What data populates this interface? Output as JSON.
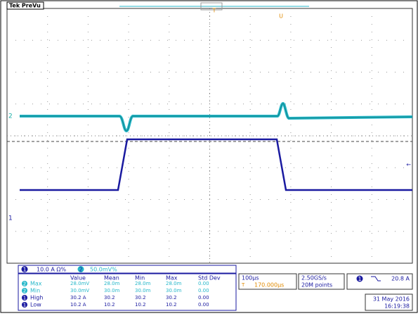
{
  "header": {
    "title": "Tek PreVu",
    "trigger_marker": "T",
    "cursor_marker": "U"
  },
  "markers": {
    "ch2": "2",
    "ch1": "1",
    "trigger_level": "←"
  },
  "channel_bar": {
    "ch1": {
      "badge": "1",
      "scale": "10.0 A Ω%"
    },
    "ch2": {
      "badge": "2",
      "scale": "50.0mV%"
    }
  },
  "measurements": {
    "headers": [
      "Value",
      "Mean",
      "Min",
      "Max",
      "Std Dev"
    ],
    "rows": [
      {
        "channel": "2",
        "label": "Max",
        "cells": [
          "28.0mV",
          "28.0m",
          "28.0m",
          "28.0m",
          "0.00"
        ]
      },
      {
        "channel": "2",
        "label": "Min",
        "cells": [
          "30.0mV",
          "30.0m",
          "30.0m",
          "30.0m",
          "0.00"
        ]
      },
      {
        "channel": "1",
        "label": "High",
        "cells": [
          "30.2 A",
          "30.2",
          "30.2",
          "30.2",
          "0.00"
        ]
      },
      {
        "channel": "1",
        "label": "Low",
        "cells": [
          "10.2 A",
          "10.2",
          "10.2",
          "10.2",
          "0.00"
        ]
      }
    ]
  },
  "timebase": {
    "scale": "100µs",
    "position": "170.000µs"
  },
  "acquisition": {
    "rate": "2.50GS/s",
    "length": "20M points"
  },
  "trigger": {
    "source": "1",
    "level": "20.8 A"
  },
  "datetime": {
    "date": "31 May 2016",
    "time": "16:19:38"
  }
}
